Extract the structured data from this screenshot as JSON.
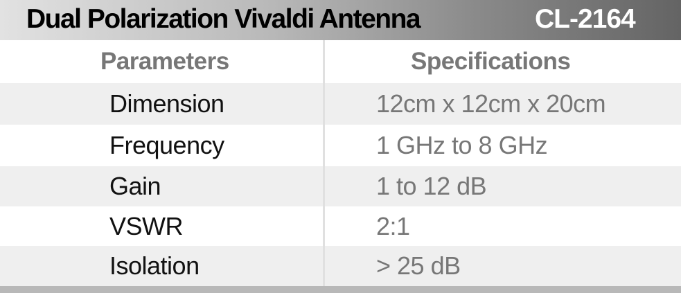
{
  "title": {
    "name": "Dual Polarization Vivaldi Antenna",
    "model": "CL-2164"
  },
  "headers": {
    "parameters": "Parameters",
    "specifications": "Specifications"
  },
  "rows": [
    {
      "parameter": "Dimension",
      "value": "12cm x 12cm x 20cm"
    },
    {
      "parameter": "Frequency",
      "value": "1 GHz to 8 GHz"
    },
    {
      "parameter": "Gain",
      "value": "1 to 12 dB"
    },
    {
      "parameter": "VSWR",
      "value": "2:1"
    },
    {
      "parameter": "Isolation",
      "value": "> 25 dB"
    }
  ]
}
